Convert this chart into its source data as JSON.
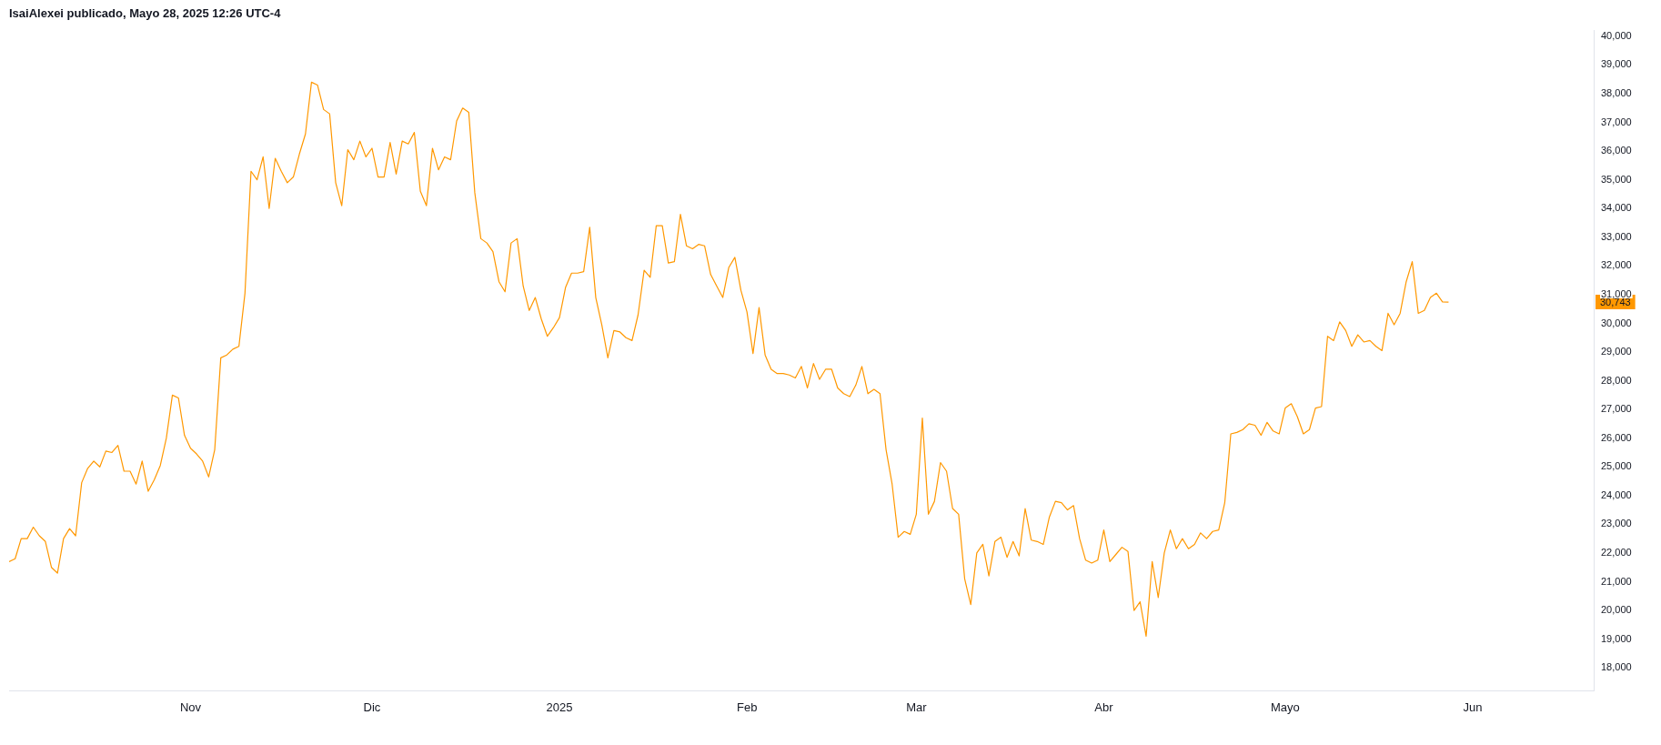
{
  "chart_data": {
    "type": "line",
    "title": "IsaiAlexei publicado, Mayo 28, 2025 12:26 UTC-4",
    "marker": "none",
    "x": [
      "2024-10-02",
      "2024-10-03",
      "2024-10-04",
      "2024-10-05",
      "2024-10-06",
      "2024-10-07",
      "2024-10-08",
      "2024-10-09",
      "2024-10-10",
      "2024-10-11",
      "2024-10-12",
      "2024-10-13",
      "2024-10-14",
      "2024-10-15",
      "2024-10-16",
      "2024-10-17",
      "2024-10-18",
      "2024-10-19",
      "2024-10-20",
      "2024-10-21",
      "2024-10-22",
      "2024-10-23",
      "2024-10-24",
      "2024-10-25",
      "2024-10-26",
      "2024-10-27",
      "2024-10-28",
      "2024-10-29",
      "2024-10-30",
      "2024-10-31",
      "2024-11-01",
      "2024-11-02",
      "2024-11-03",
      "2024-11-04",
      "2024-11-05",
      "2024-11-06",
      "2024-11-07",
      "2024-11-08",
      "2024-11-09",
      "2024-11-10",
      "2024-11-11",
      "2024-11-12",
      "2024-11-13",
      "2024-11-14",
      "2024-11-15",
      "2024-11-16",
      "2024-11-17",
      "2024-11-18",
      "2024-11-19",
      "2024-11-20",
      "2024-11-21",
      "2024-11-22",
      "2024-11-23",
      "2024-11-24",
      "2024-11-25",
      "2024-11-26",
      "2024-11-27",
      "2024-11-28",
      "2024-11-29",
      "2024-11-30",
      "2024-12-01",
      "2024-12-02",
      "2024-12-03",
      "2024-12-04",
      "2024-12-05",
      "2024-12-06",
      "2024-12-07",
      "2024-12-08",
      "2024-12-09",
      "2024-12-10",
      "2024-12-11",
      "2024-12-12",
      "2024-12-13",
      "2024-12-14",
      "2024-12-15",
      "2024-12-16",
      "2024-12-17",
      "2024-12-18",
      "2024-12-19",
      "2024-12-20",
      "2024-12-21",
      "2024-12-22",
      "2024-12-23",
      "2024-12-24",
      "2024-12-25",
      "2024-12-26",
      "2024-12-27",
      "2024-12-28",
      "2024-12-29",
      "2024-12-30",
      "2024-12-31",
      "2025-01-01",
      "2025-01-02",
      "2025-01-03",
      "2025-01-04",
      "2025-01-05",
      "2025-01-06",
      "2025-01-07",
      "2025-01-08",
      "2025-01-09",
      "2025-01-10",
      "2025-01-11",
      "2025-01-12",
      "2025-01-13",
      "2025-01-14",
      "2025-01-15",
      "2025-01-16",
      "2025-01-17",
      "2025-01-18",
      "2025-01-19",
      "2025-01-20",
      "2025-01-21",
      "2025-01-22",
      "2025-01-23",
      "2025-01-24",
      "2025-01-25",
      "2025-01-26",
      "2025-01-27",
      "2025-01-28",
      "2025-01-29",
      "2025-01-30",
      "2025-01-31",
      "2025-02-01",
      "2025-02-02",
      "2025-02-03",
      "2025-02-04",
      "2025-02-05",
      "2025-02-06",
      "2025-02-07",
      "2025-02-08",
      "2025-02-09",
      "2025-02-10",
      "2025-02-11",
      "2025-02-12",
      "2025-02-13",
      "2025-02-14",
      "2025-02-15",
      "2025-02-16",
      "2025-02-17",
      "2025-02-18",
      "2025-02-19",
      "2025-02-20",
      "2025-02-21",
      "2025-02-22",
      "2025-02-23",
      "2025-02-24",
      "2025-02-25",
      "2025-02-26",
      "2025-02-27",
      "2025-02-28",
      "2025-03-01",
      "2025-03-02",
      "2025-03-03",
      "2025-03-04",
      "2025-03-05",
      "2025-03-06",
      "2025-03-07",
      "2025-03-08",
      "2025-03-09",
      "2025-03-10",
      "2025-03-11",
      "2025-03-12",
      "2025-03-13",
      "2025-03-14",
      "2025-03-15",
      "2025-03-16",
      "2025-03-17",
      "2025-03-18",
      "2025-03-19",
      "2025-03-20",
      "2025-03-21",
      "2025-03-22",
      "2025-03-23",
      "2025-03-24",
      "2025-03-25",
      "2025-03-26",
      "2025-03-27",
      "2025-03-28",
      "2025-03-29",
      "2025-03-30",
      "2025-03-31",
      "2025-04-01",
      "2025-04-02",
      "2025-04-03",
      "2025-04-04",
      "2025-04-05",
      "2025-04-06",
      "2025-04-07",
      "2025-04-08",
      "2025-04-09",
      "2025-04-10",
      "2025-04-11",
      "2025-04-12",
      "2025-04-13",
      "2025-04-14",
      "2025-04-15",
      "2025-04-16",
      "2025-04-17",
      "2025-04-18",
      "2025-04-19",
      "2025-04-20",
      "2025-04-21",
      "2025-04-22",
      "2025-04-23",
      "2025-04-24",
      "2025-04-25",
      "2025-04-26",
      "2025-04-27",
      "2025-04-28",
      "2025-04-29",
      "2025-04-30",
      "2025-05-01",
      "2025-05-02",
      "2025-05-03",
      "2025-05-04",
      "2025-05-05",
      "2025-05-06",
      "2025-05-07",
      "2025-05-08",
      "2025-05-09",
      "2025-05-10",
      "2025-05-11",
      "2025-05-12",
      "2025-05-13",
      "2025-05-14",
      "2025-05-15",
      "2025-05-16",
      "2025-05-17",
      "2025-05-18",
      "2025-05-19",
      "2025-05-20",
      "2025-05-21",
      "2025-05-22",
      "2025-05-23",
      "2025-05-24",
      "2025-05-25",
      "2025-05-26",
      "2025-05-27",
      "2025-05-28"
    ],
    "series": [
      {
        "color": "#ff9800",
        "values": [
          21700,
          21800,
          22500,
          22500,
          22900,
          22600,
          22400,
          21500,
          21300,
          22500,
          22850,
          22600,
          24450,
          24950,
          25200,
          25000,
          25550,
          25500,
          25750,
          24850,
          24850,
          24400,
          25200,
          24150,
          24550,
          25050,
          26000,
          27500,
          27400,
          26100,
          25650,
          25450,
          25200,
          24650,
          25600,
          28800,
          28900,
          29100,
          29200,
          31050,
          35300,
          35000,
          35800,
          34000,
          35750,
          35300,
          34900,
          35100,
          35900,
          36600,
          38400,
          38300,
          37450,
          37300,
          34900,
          34100,
          36050,
          35700,
          36350,
          35800,
          36100,
          35100,
          35100,
          36300,
          35200,
          36350,
          36250,
          36650,
          34600,
          34100,
          36100,
          35350,
          35800,
          35700,
          37050,
          37500,
          37350,
          34550,
          32950,
          32800,
          32500,
          31450,
          31100,
          32800,
          32950,
          31300,
          30450,
          30900,
          30150,
          29550,
          29850,
          30200,
          31250,
          31750,
          31750,
          31800,
          33350,
          30900,
          29950,
          28800,
          29750,
          29700,
          29500,
          29400,
          30300,
          31850,
          31600,
          33400,
          33400,
          32100,
          32150,
          33800,
          32700,
          32600,
          32750,
          32700,
          31700,
          31300,
          30900,
          31950,
          32300,
          31150,
          30400,
          28950,
          30550,
          28900,
          28400,
          28250,
          28250,
          28200,
          28100,
          28500,
          27750,
          28600,
          28050,
          28400,
          28400,
          27750,
          27550,
          27450,
          27850,
          28500,
          27550,
          27700,
          27550,
          25600,
          24400,
          22550,
          22750,
          22650,
          23350,
          26700,
          23350,
          23800,
          25150,
          24850,
          23550,
          23350,
          21100,
          20200,
          22000,
          22300,
          21200,
          22400,
          22550,
          21850,
          22400,
          21900,
          23550,
          22450,
          22400,
          22300,
          23250,
          23800,
          23750,
          23500,
          23650,
          22500,
          21750,
          21650,
          21750,
          22800,
          21700,
          21950,
          22200,
          22050,
          20000,
          20300,
          19100,
          21700,
          20450,
          22000,
          22800,
          22150,
          22500,
          22150,
          22300,
          22700,
          22500,
          22750,
          22800,
          23750,
          26150,
          26200,
          26300,
          26500,
          26450,
          26100,
          26550,
          26250,
          26150,
          27050,
          27200,
          26750,
          26150,
          26300,
          27050,
          27100,
          29550,
          29400,
          30050,
          29750,
          29200,
          29600,
          29350,
          29400,
          29200,
          29050,
          30350,
          29950,
          30350,
          31450,
          32150,
          30350,
          30450,
          30900,
          31050,
          30750,
          30743
        ]
      }
    ],
    "xlim": [
      "2024-10-02",
      "2025-06-21"
    ],
    "xticks": [
      {
        "value": "2024-11-01",
        "label": "Nov"
      },
      {
        "value": "2024-12-01",
        "label": "Dic"
      },
      {
        "value": "2025-01-01",
        "label": "2025"
      },
      {
        "value": "2025-02-01",
        "label": "Feb"
      },
      {
        "value": "2025-03-01",
        "label": "Mar"
      },
      {
        "value": "2025-04-01",
        "label": "Abr"
      },
      {
        "value": "2025-05-01",
        "label": "Mayo"
      },
      {
        "value": "2025-06-01",
        "label": "Jun"
      }
    ],
    "ylim": [
      17200,
      40200
    ],
    "yticks": [
      {
        "value": 18000,
        "label": "18,000"
      },
      {
        "value": 19000,
        "label": "19,000"
      },
      {
        "value": 20000,
        "label": "20,000"
      },
      {
        "value": 21000,
        "label": "21,000"
      },
      {
        "value": 22000,
        "label": "22,000"
      },
      {
        "value": 23000,
        "label": "23,000"
      },
      {
        "value": 24000,
        "label": "24,000"
      },
      {
        "value": 25000,
        "label": "25,000"
      },
      {
        "value": 26000,
        "label": "26,000"
      },
      {
        "value": 27000,
        "label": "27,000"
      },
      {
        "value": 28000,
        "label": "28,000"
      },
      {
        "value": 29000,
        "label": "29,000"
      },
      {
        "value": 30000,
        "label": "30,000"
      },
      {
        "value": 31000,
        "label": "31,000"
      },
      {
        "value": 32000,
        "label": "32,000"
      },
      {
        "value": 33000,
        "label": "33,000"
      },
      {
        "value": 34000,
        "label": "34,000"
      },
      {
        "value": 35000,
        "label": "35,000"
      },
      {
        "value": 36000,
        "label": "36,000"
      },
      {
        "value": 37000,
        "label": "37,000"
      },
      {
        "value": 38000,
        "label": "38,000"
      },
      {
        "value": 39000,
        "label": "39,000"
      },
      {
        "value": 40000,
        "label": "40,000"
      }
    ],
    "annotations": [
      "30,743"
    ]
  }
}
